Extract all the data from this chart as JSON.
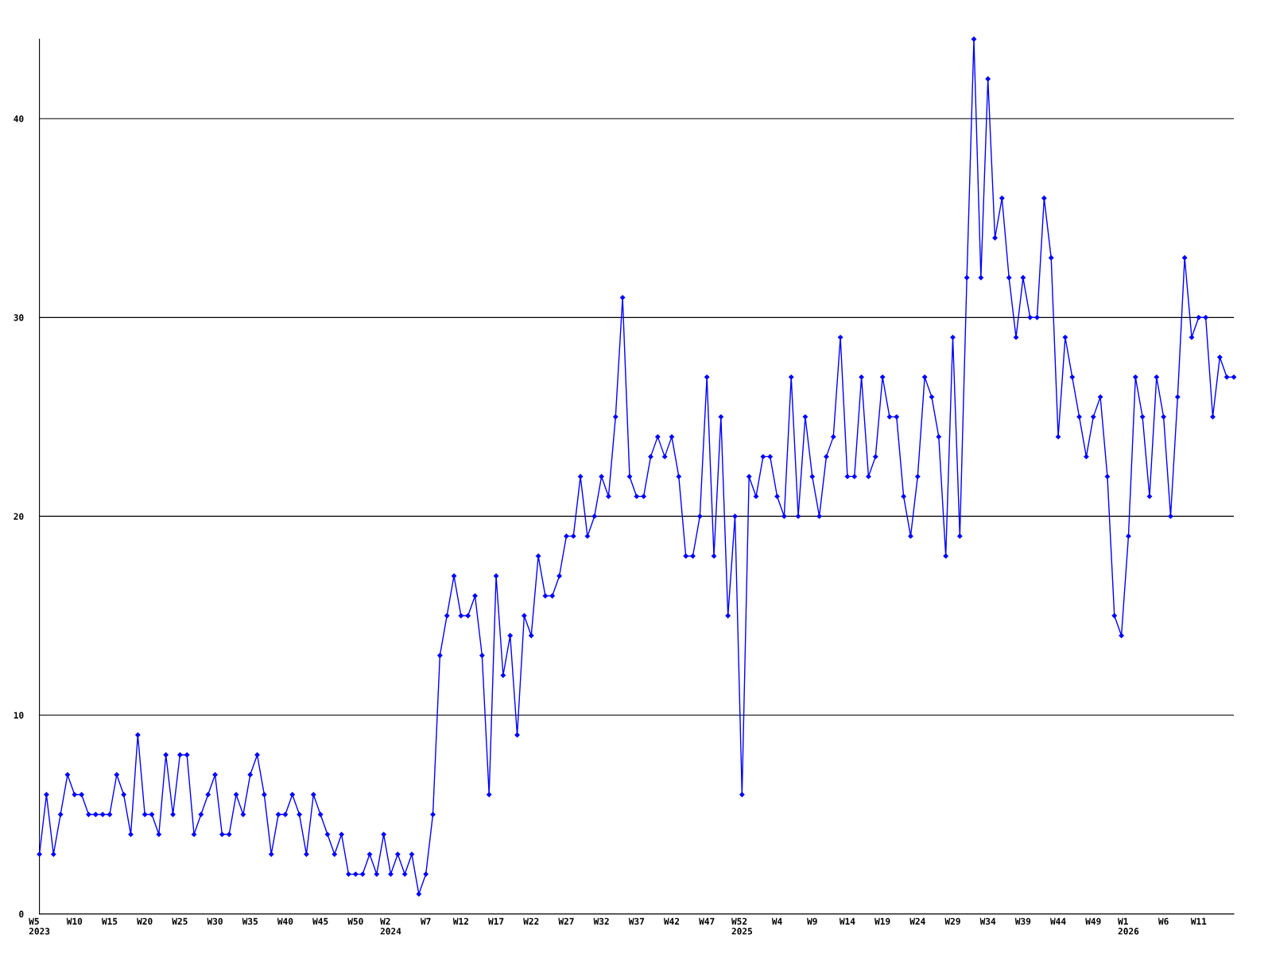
{
  "chart_data": {
    "type": "line",
    "categories": [
      "W5\n2023",
      null,
      null,
      null,
      null,
      "W10",
      null,
      null,
      null,
      null,
      "W15",
      null,
      null,
      null,
      null,
      "W20",
      null,
      null,
      null,
      null,
      "W25",
      null,
      null,
      null,
      null,
      "W30",
      null,
      null,
      null,
      null,
      "W35",
      null,
      null,
      null,
      null,
      "W40",
      null,
      null,
      null,
      null,
      "W45",
      null,
      null,
      null,
      null,
      "W50",
      null,
      null,
      null,
      null,
      "W2\n2024",
      null,
      null,
      null,
      null,
      "W7",
      null,
      null,
      null,
      null,
      "W12",
      null,
      null,
      null,
      null,
      "W17",
      null,
      null,
      null,
      null,
      "W22",
      null,
      null,
      null,
      null,
      "W27",
      null,
      null,
      null,
      null,
      "W32",
      null,
      null,
      null,
      null,
      "W37",
      null,
      null,
      null,
      null,
      "W42",
      null,
      null,
      null,
      null,
      "W47",
      null,
      null,
      null,
      null,
      "W52\n2025",
      null,
      null,
      null,
      null,
      "W4",
      null,
      null,
      null,
      null,
      "W9",
      null,
      null,
      null,
      null,
      "W14",
      null,
      null,
      null,
      null,
      "W19",
      null,
      null,
      null,
      null,
      "W24",
      null,
      null,
      null,
      null,
      "W29",
      null,
      null,
      null,
      null,
      "W34",
      null,
      null,
      null,
      null,
      "W39",
      null,
      null,
      null,
      null,
      "W44",
      null,
      null,
      null,
      null,
      "W49",
      null,
      null,
      null,
      null,
      "W1\n2026",
      null,
      null,
      null,
      null,
      "W6",
      null,
      null,
      null,
      null,
      "W11",
      null,
      null,
      null,
      null,
      null
    ],
    "series": [
      {
        "color": "#0000ff",
        "values": [
          3,
          6,
          3,
          5,
          7,
          6,
          6,
          5,
          5,
          5,
          5,
          7,
          6,
          4,
          9,
          5,
          5,
          4,
          8,
          5,
          8,
          8,
          4,
          5,
          6,
          7,
          4,
          4,
          6,
          5,
          7,
          8,
          6,
          3,
          5,
          5,
          6,
          5,
          3,
          6,
          5,
          4,
          3,
          4,
          2,
          2,
          2,
          3,
          2,
          4,
          2,
          3,
          2,
          3,
          1,
          2,
          5,
          13,
          15,
          17,
          15,
          15,
          16,
          13,
          6,
          17,
          12,
          14,
          9,
          15,
          14,
          18,
          16,
          16,
          17,
          19,
          19,
          22,
          19,
          20,
          22,
          21,
          25,
          31,
          22,
          21,
          21,
          23,
          24,
          23,
          24,
          22,
          18,
          18,
          20,
          27,
          18,
          25,
          15,
          20,
          6,
          22,
          21,
          23,
          23,
          21,
          20,
          27,
          20,
          25,
          22,
          20,
          23,
          24,
          29,
          22,
          22,
          27,
          22,
          23,
          27,
          25,
          25,
          21,
          19,
          22,
          27,
          26,
          24,
          18,
          29,
          19,
          32,
          44,
          32,
          42,
          34,
          36,
          32,
          29,
          32,
          30,
          30,
          36,
          33,
          24,
          29,
          27,
          25,
          23,
          25,
          26,
          22,
          15,
          14,
          19,
          27,
          25,
          21,
          27,
          25,
          20,
          26,
          33,
          29,
          30,
          30,
          25,
          28,
          27,
          27
        ]
      }
    ],
    "ylim": [
      0,
      44
    ],
    "yticks": [
      0,
      10,
      20,
      30,
      40
    ],
    "grid": "y",
    "marker": "diamond",
    "line_style": "solid",
    "legend": false
  }
}
